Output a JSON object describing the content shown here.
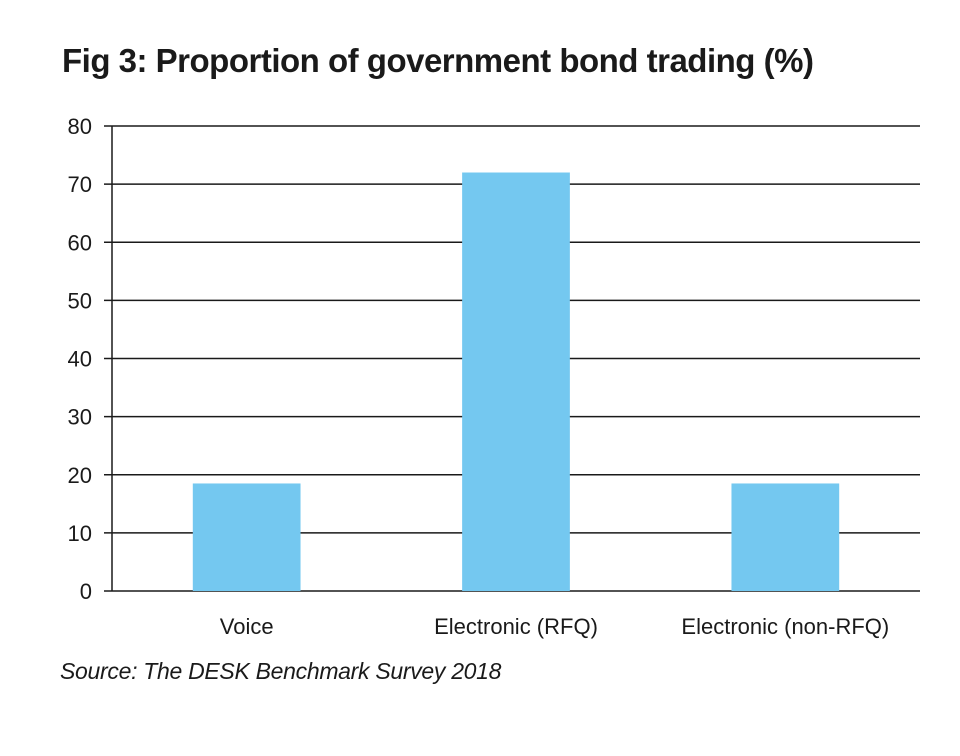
{
  "chart_data": {
    "type": "bar",
    "title": "Fig 3: Proportion of government bond trading (%)",
    "categories": [
      "Voice",
      "Electronic (RFQ)",
      "Electronic (non-RFQ)"
    ],
    "values": [
      18.5,
      72,
      18.5
    ],
    "ylim": [
      0,
      80
    ],
    "yticks": [
      0,
      10,
      20,
      30,
      40,
      50,
      60,
      70,
      80
    ],
    "grid": true,
    "bar_color": "#74c8f0",
    "source": "Source: The DESK Benchmark Survey 2018"
  }
}
